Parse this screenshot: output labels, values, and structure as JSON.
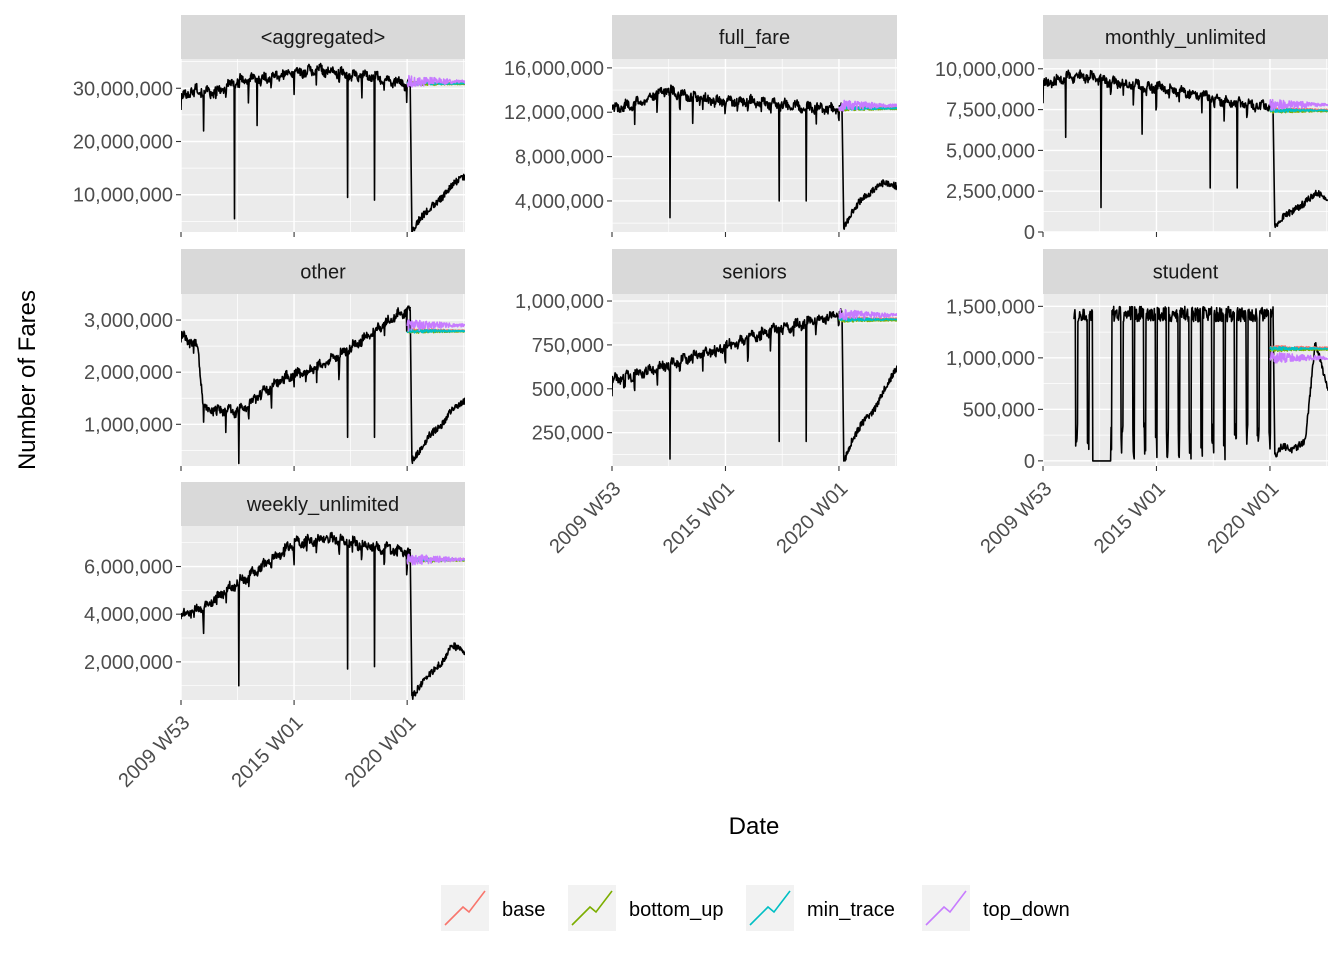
{
  "figure": {
    "xlabel": "Date",
    "ylabel": "Number of Fares"
  },
  "legend": {
    "position": "bottom",
    "items": [
      {
        "name": "base",
        "color": "#F8766D"
      },
      {
        "name": "bottom_up",
        "color": "#7CAE00"
      },
      {
        "name": "min_trace",
        "color": "#00BFC4"
      },
      {
        "name": "top_down",
        "color": "#C77CFF"
      }
    ]
  },
  "colors": {
    "panel_bg": "#EBEBEB",
    "strip_bg": "#D9D9D9",
    "grid": "#FFFFFF",
    "actual_line": "#000000",
    "tick_text": "#4D4D4D"
  },
  "chart_data": {
    "type": "line",
    "facet_layout": "3 columns, free y scales",
    "x_ticks": [
      "2009 W53",
      "2015 W01",
      "2020 W01"
    ],
    "xlim": [
      "2009 W53",
      "2022 W30"
    ],
    "forecast_start": "2020 W01",
    "panels": [
      {
        "strip": "<aggregated>",
        "ylim": [
          3000000,
          35500000
        ],
        "y_ticks": [
          {
            "v": 10000000,
            "label": "10,000,000"
          },
          {
            "v": 20000000,
            "label": "20,000,000"
          },
          {
            "v": 30000000,
            "label": "30,000,000"
          }
        ],
        "actual": {
          "points": [
            [
              "2010 W01",
              28000000
            ],
            [
              "2010 W30",
              30000000
            ],
            [
              "2011 W20",
              29000000
            ],
            [
              "2012 W30",
              31500000
            ],
            [
              "2013 W40",
              32000000
            ],
            [
              "2014 W50",
              33000000
            ],
            [
              "2016 W10",
              33500000
            ],
            [
              "2017 W30",
              32500000
            ],
            [
              "2018 W40",
              32000000
            ],
            [
              "2019 W40",
              31000000
            ],
            [
              "2020 W08",
              30500000
            ]
          ],
          "dips": [
            [
              "2011 W01",
              22000000
            ],
            [
              "2012 W20",
              5500000
            ],
            [
              "2013 W20",
              23000000
            ],
            [
              "2017 W20",
              9500000
            ],
            [
              "2018 W30",
              9000000
            ]
          ]
        },
        "covid": [
          [
            "2020 W12",
            3000000
          ],
          [
            "2020 W30",
            5500000
          ],
          [
            "2021 W01",
            7500000
          ],
          [
            "2021 W30",
            9500000
          ],
          [
            "2022 W01",
            12000000
          ],
          [
            "2022 W30",
            13500000
          ]
        ],
        "forecasts": {
          "base": 31000000,
          "bottom_up": 30800000,
          "min_trace": 30900000,
          "top_down": 31300000
        }
      },
      {
        "strip": "full_fare",
        "ylim": [
          1200000,
          16800000
        ],
        "y_ticks": [
          {
            "v": 4000000,
            "label": "4,000,000"
          },
          {
            "v": 8000000,
            "label": "8,000,000"
          },
          {
            "v": 12000000,
            "label": "12,000,000"
          },
          {
            "v": 16000000,
            "label": "16,000,000"
          }
        ],
        "actual": {
          "points": [
            [
              "2010 W01",
              12200000
            ],
            [
              "2011 W01",
              12800000
            ],
            [
              "2012 W20",
              14000000
            ],
            [
              "2013 W10",
              13500000
            ],
            [
              "2014 W30",
              13000000
            ],
            [
              "2016 W01",
              13000000
            ],
            [
              "2017 W40",
              12600000
            ],
            [
              "2019 W01",
              12400000
            ],
            [
              "2020 W08",
              12300000
            ]
          ],
          "dips": [
            [
              "2012 W30",
              2500000
            ],
            [
              "2013 W30",
              11000000
            ],
            [
              "2017 W20",
              4000000
            ],
            [
              "2018 W30",
              4000000
            ]
          ]
        },
        "covid": [
          [
            "2020 W12",
            1500000
          ],
          [
            "2020 W30",
            3000000
          ],
          [
            "2021 W01",
            4200000
          ],
          [
            "2021 W30",
            5000000
          ],
          [
            "2022 W01",
            5700000
          ],
          [
            "2022 W30",
            5300000
          ]
        ],
        "forecasts": {
          "base": 12400000,
          "bottom_up": 12300000,
          "min_trace": 12350000,
          "top_down": 12600000
        }
      },
      {
        "strip": "monthly_unlimited",
        "ylim": [
          0,
          10600000
        ],
        "y_ticks": [
          {
            "v": 0,
            "label": "0"
          },
          {
            "v": 2500000,
            "label": "2,500,000"
          },
          {
            "v": 5000000,
            "label": "5,000,000"
          },
          {
            "v": 7500000,
            "label": "7,500,000"
          },
          {
            "v": 10000000,
            "label": "10,000,000"
          }
        ],
        "actual": {
          "points": [
            [
              "2010 W01",
              9000000
            ],
            [
              "2011 W01",
              9500000
            ],
            [
              "2012 W01",
              9500000
            ],
            [
              "2013 W01",
              9200000
            ],
            [
              "2014 W01",
              9000000
            ],
            [
              "2015 W20",
              8800000
            ],
            [
              "2017 W01",
              8400000
            ],
            [
              "2018 W01",
              8000000
            ],
            [
              "2019 W01",
              7800000
            ],
            [
              "2020 W08",
              7700000
            ]
          ],
          "dips": [
            [
              "2011 W01",
              5800000
            ],
            [
              "2012 W30",
              1500000
            ],
            [
              "2014 W20",
              6000000
            ],
            [
              "2017 W20",
              2700000
            ],
            [
              "2018 W30",
              2700000
            ]
          ]
        },
        "covid": [
          [
            "2020 W12",
            400000
          ],
          [
            "2020 W30",
            900000
          ],
          [
            "2021 W01",
            1300000
          ],
          [
            "2021 W30",
            1800000
          ],
          [
            "2022 W01",
            2400000
          ],
          [
            "2022 W30",
            2100000
          ]
        ],
        "forecasts": {
          "base": 7500000,
          "bottom_up": 7400000,
          "min_trace": 7450000,
          "top_down": 7800000
        }
      },
      {
        "strip": "other",
        "ylim": [
          200000,
          3500000
        ],
        "y_ticks": [
          {
            "v": 1000000,
            "label": "1,000,000"
          },
          {
            "v": 2000000,
            "label": "2,000,000"
          },
          {
            "v": 3000000,
            "label": "3,000,000"
          }
        ],
        "actual": {
          "points": [
            [
              "2010 W01",
              2700000
            ],
            [
              "2010 W40",
              2500000
            ],
            [
              "2011 W01",
              1300000
            ],
            [
              "2012 W30",
              1250000
            ],
            [
              "2013 W30",
              1600000
            ],
            [
              "2014 W30",
              1900000
            ],
            [
              "2015 W30",
              2000000
            ],
            [
              "2016 W30",
              2200000
            ],
            [
              "2017 W30",
              2500000
            ],
            [
              "2018 W30",
              2800000
            ],
            [
              "2019 W30",
              3100000
            ],
            [
              "2020 W08",
              3200000
            ]
          ],
          "dips": [
            [
              "2012 W30",
              250000
            ],
            [
              "2017 W20",
              750000
            ],
            [
              "2018 W30",
              750000
            ]
          ]
        },
        "covid": [
          [
            "2020 W12",
            300000
          ],
          [
            "2020 W30",
            500000
          ],
          [
            "2021 W01",
            800000
          ],
          [
            "2021 W30",
            1000000
          ],
          [
            "2022 W01",
            1300000
          ],
          [
            "2022 W30",
            1450000
          ]
        ],
        "forecasts": {
          "base": 2800000,
          "bottom_up": 2780000,
          "min_trace": 2790000,
          "top_down": 2900000
        }
      },
      {
        "strip": "seniors",
        "ylim": [
          60000,
          1040000
        ],
        "y_ticks": [
          {
            "v": 250000,
            "label": "250,000"
          },
          {
            "v": 500000,
            "label": "500,000"
          },
          {
            "v": 750000,
            "label": "750,000"
          },
          {
            "v": 1000000,
            "label": "1,000,000"
          }
        ],
        "actual": {
          "points": [
            [
              "2010 W01",
              550000
            ],
            [
              "2011 W01",
              580000
            ],
            [
              "2012 W01",
              620000
            ],
            [
              "2013 W01",
              660000
            ],
            [
              "2014 W01",
              700000
            ],
            [
              "2015 W01",
              740000
            ],
            [
              "2016 W01",
              790000
            ],
            [
              "2017 W01",
              830000
            ],
            [
              "2018 W01",
              860000
            ],
            [
              "2019 W01",
              890000
            ],
            [
              "2020 W08",
              930000
            ]
          ],
          "dips": [
            [
              "2012 W30",
              100000
            ],
            [
              "2017 W20",
              200000
            ],
            [
              "2018 W30",
              200000
            ]
          ]
        },
        "covid": [
          [
            "2020 W12",
            80000
          ],
          [
            "2020 W30",
            200000
          ],
          [
            "2021 W01",
            300000
          ],
          [
            "2021 W30",
            380000
          ],
          [
            "2022 W01",
            500000
          ],
          [
            "2022 W30",
            620000
          ]
        ],
        "forecasts": {
          "base": 900000,
          "bottom_up": 890000,
          "min_trace": 895000,
          "top_down": 920000
        }
      },
      {
        "strip": "student",
        "ylim": [
          -50000,
          1620000
        ],
        "y_ticks": [
          {
            "v": 0,
            "label": "0"
          },
          {
            "v": 500000,
            "label": "500,000"
          },
          {
            "v": 1000000,
            "label": "1,000,000"
          },
          {
            "v": 1500000,
            "label": "1,500,000"
          }
        ],
        "actual": {
          "points": [
            [
              "2011 W20",
              1500000
            ],
            [
              "2020 W08",
              1500000
            ]
          ],
          "dips": [
            [
              "2012 W10",
              0
            ],
            [
              "2012 W52",
              0
            ]
          ]
        },
        "covid": [
          [
            "2020 W12",
            50000
          ],
          [
            "2020 W30",
            150000
          ],
          [
            "2021 W01",
            100000
          ],
          [
            "2021 W30",
            200000
          ],
          [
            "2022 W01",
            1150000
          ],
          [
            "2022 W30",
            700000
          ]
        ],
        "forecasts": {
          "base": 1100000,
          "bottom_up": 1080000,
          "min_trace": 1090000,
          "top_down": 1000000
        }
      },
      {
        "strip": "weekly_unlimited",
        "ylim": [
          400000,
          7700000
        ],
        "y_ticks": [
          {
            "v": 2000000,
            "label": "2,000,000"
          },
          {
            "v": 4000000,
            "label": "4,000,000"
          },
          {
            "v": 6000000,
            "label": "6,000,000"
          }
        ],
        "actual": {
          "points": [
            [
              "2010 W01",
              3900000
            ],
            [
              "2011 W01",
              4300000
            ],
            [
              "2012 W01",
              5000000
            ],
            [
              "2013 W01",
              5600000
            ],
            [
              "2014 W01",
              6300000
            ],
            [
              "2015 W01",
              7000000
            ],
            [
              "2016 W30",
              7200000
            ],
            [
              "2017 W30",
              7000000
            ],
            [
              "2018 W30",
              6800000
            ],
            [
              "2019 W30",
              6700000
            ],
            [
              "2020 W08",
              6600000
            ]
          ],
          "dips": [
            [
              "2011 W01",
              3200000
            ],
            [
              "2012 W30",
              1000000
            ],
            [
              "2017 W20",
              1700000
            ],
            [
              "2018 W30",
              1800000
            ]
          ]
        },
        "covid": [
          [
            "2020 W12",
            500000
          ],
          [
            "2020 W30",
            1000000
          ],
          [
            "2021 W01",
            1500000
          ],
          [
            "2021 W30",
            2000000
          ],
          [
            "2022 W01",
            2700000
          ],
          [
            "2022 W30",
            2400000
          ]
        ],
        "forecasts": {
          "base": 6300000,
          "bottom_up": 6250000,
          "min_trace": 6280000,
          "top_down": 6300000
        }
      }
    ]
  }
}
